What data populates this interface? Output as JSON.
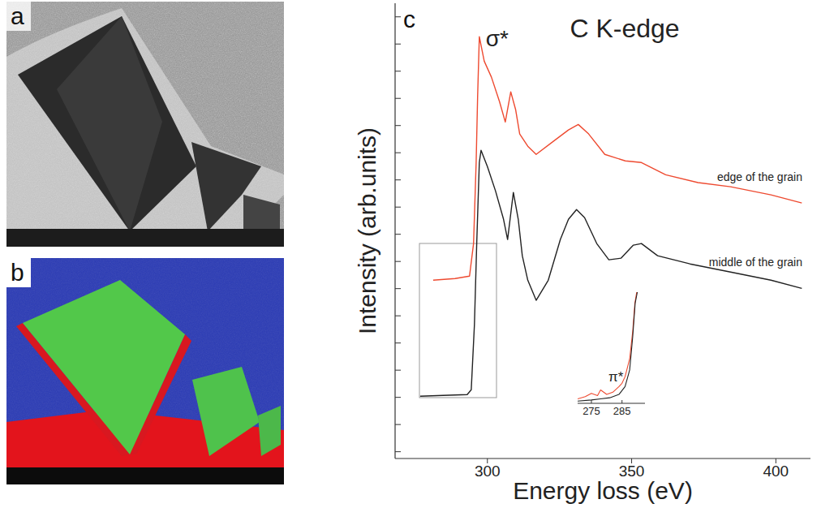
{
  "panel_labels": [
    "a",
    "b",
    "c"
  ],
  "chart_data": {
    "type": "line",
    "title": "C K-edge",
    "x_label": "Energy loss (eV)",
    "y_label": "Intensity (arb.units)",
    "xlim": [
      268,
      412
    ],
    "xticks": [
      300,
      350,
      400
    ],
    "ylim": [
      0.75,
      17.5
    ],
    "yticks": [
      1,
      2,
      3,
      4,
      5,
      6,
      7,
      8,
      9,
      10,
      11,
      12,
      13,
      14,
      15,
      16,
      17
    ],
    "tick_labels": "x",
    "annotations": [
      "σ*"
    ],
    "series": [
      {
        "name": "edge of the grain",
        "color": "#ee4a30",
        "x": [
          281.2,
          288.8,
          293.8,
          295.2,
          296.1,
          296.6,
          297.2,
          298.9,
          301.4,
          304.2,
          306.2,
          308.1,
          309.8,
          311.2,
          314.0,
          316.9,
          322.5,
          328.1,
          331.5,
          335.1,
          340.7,
          347.8,
          353.4,
          361.8,
          373.0,
          384.3,
          398.3,
          409.0
        ],
        "values": [
          7.31,
          7.37,
          7.46,
          8.66,
          11.64,
          14.03,
          16.27,
          15.37,
          14.78,
          13.88,
          13.13,
          14.24,
          13.58,
          12.69,
          12.24,
          11.94,
          12.39,
          12.84,
          13.04,
          12.69,
          11.94,
          11.7,
          11.64,
          11.19,
          10.9,
          10.75,
          10.45,
          10.15
        ]
      },
      {
        "name": "middle of the grain",
        "color": "#222222",
        "x": [
          276.7,
          284.6,
          293.0,
          294.4,
          295.5,
          296.3,
          297.2,
          297.8,
          300.0,
          302.8,
          305.6,
          307.0,
          309.0,
          310.7,
          312.1,
          314.0,
          316.9,
          321.1,
          325.3,
          328.1,
          330.9,
          333.7,
          337.9,
          342.1,
          346.3,
          350.6,
          353.4,
          359.0,
          370.2,
          384.3,
          398.3,
          409.0
        ],
        "values": [
          3.04,
          3.07,
          3.1,
          3.28,
          5.67,
          8.66,
          11.64,
          12.09,
          11.49,
          10.6,
          9.55,
          8.81,
          10.54,
          9.55,
          8.21,
          7.31,
          6.57,
          7.31,
          8.81,
          9.55,
          9.91,
          9.61,
          8.66,
          8.06,
          8.12,
          8.6,
          8.66,
          8.21,
          7.91,
          7.61,
          7.31,
          7.01
        ]
      }
    ],
    "inset": {
      "annotation": "π*",
      "xlim": [
        270.5,
        292.5
      ],
      "xticks": [
        275,
        285
      ],
      "ylim": [
        0,
        10
      ],
      "series": [
        {
          "color": "#ee4a30",
          "x": [
            270.5,
            273,
            275,
            277,
            278,
            280,
            282,
            284,
            285,
            286,
            287.5,
            288.5,
            289.2,
            289.8
          ],
          "values": [
            0.4,
            0.6,
            0.9,
            0.7,
            1.2,
            0.8,
            1.0,
            1.5,
            1.8,
            2.4,
            4,
            6.5,
            9,
            10
          ]
        },
        {
          "color": "#222222",
          "x": [
            270.5,
            275,
            278,
            281,
            284,
            286,
            287.5,
            288.5,
            289.3,
            290
          ],
          "values": [
            0.2,
            0.3,
            0.4,
            0.5,
            0.8,
            1.5,
            3,
            6,
            9,
            10
          ]
        }
      ]
    }
  }
}
